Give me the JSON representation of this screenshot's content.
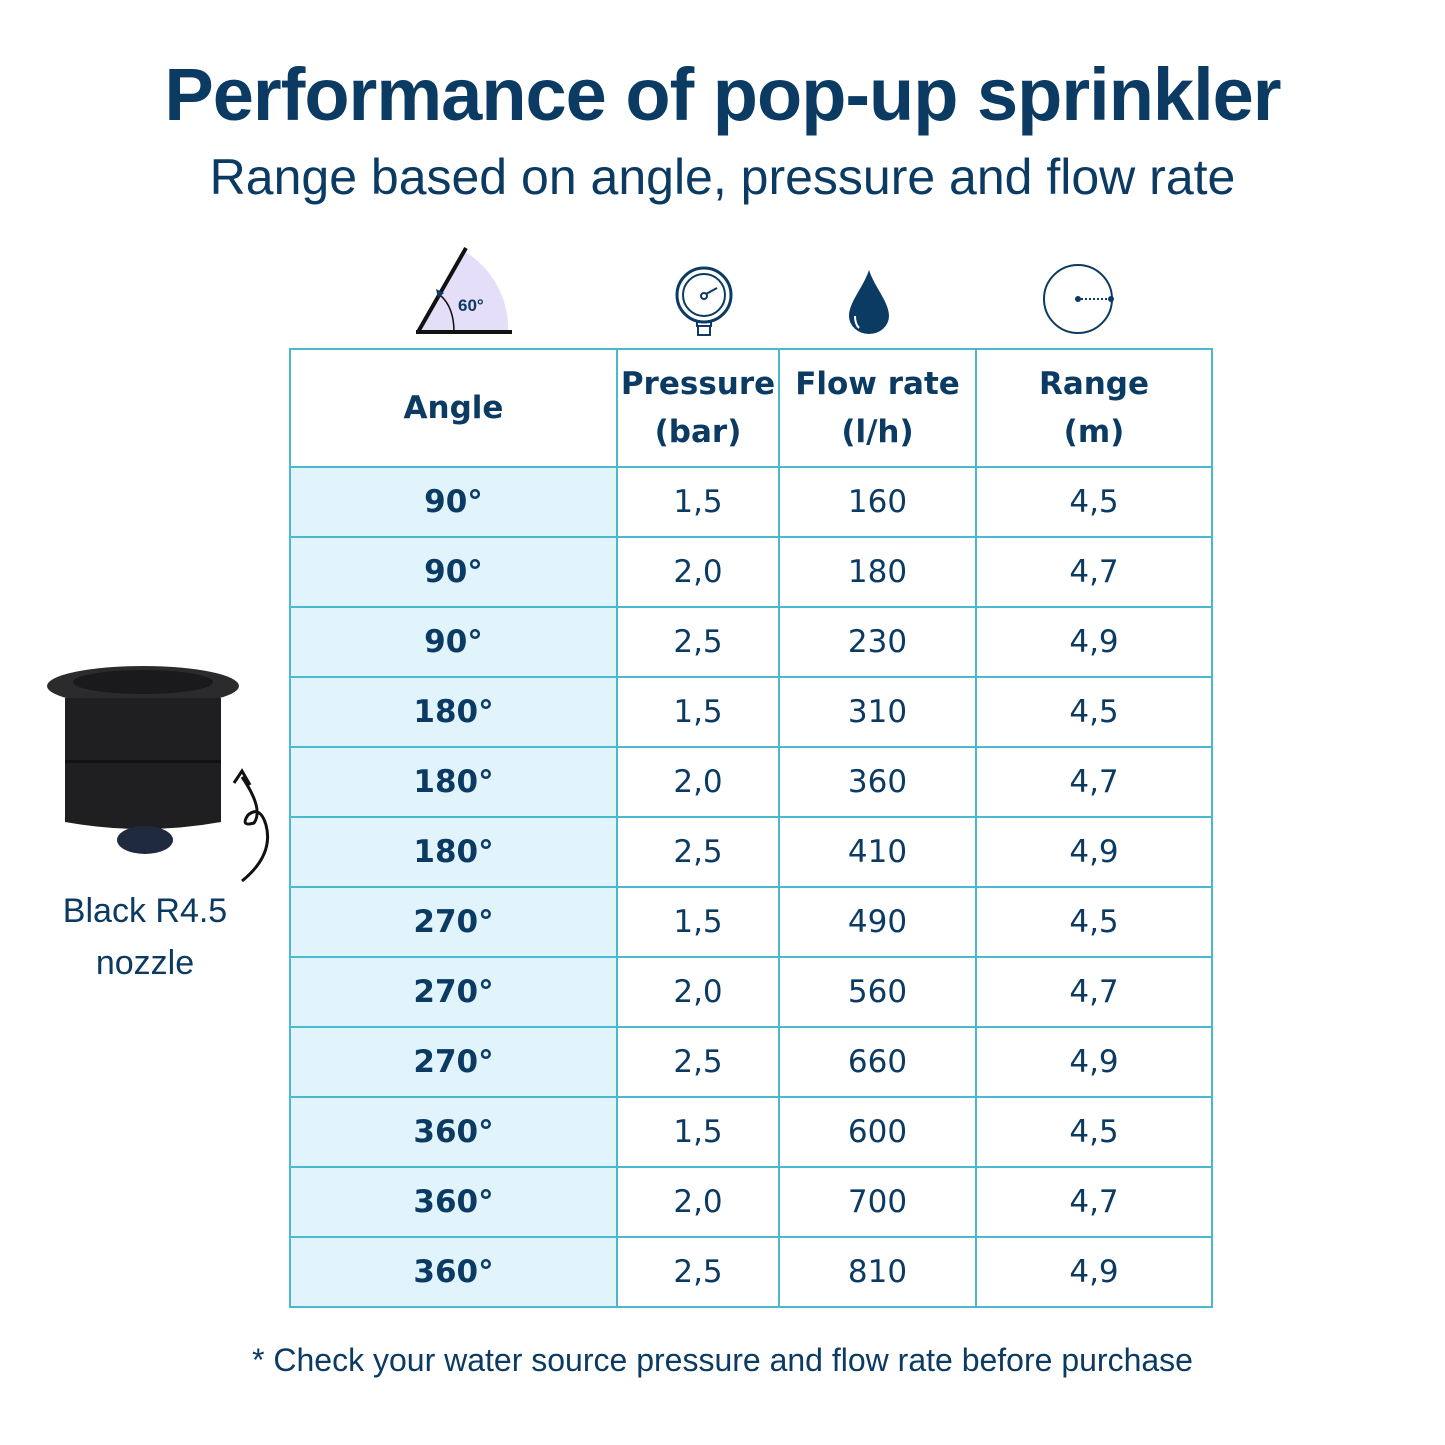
{
  "title": "Performance of pop-up sprinkler",
  "subtitle": "Range based on angle, pressure and flow rate",
  "icons": {
    "angle": {
      "name": "angle-icon",
      "label": "60°"
    },
    "pressure": "pressure-gauge-icon",
    "flow": "water-drop-icon",
    "range": "circle-radius-icon"
  },
  "colors": {
    "text": "#0b3a62",
    "border": "#4cb8cf",
    "angle_column_bg": "#e1f4fb"
  },
  "table": {
    "headers": [
      {
        "line1": "Angle",
        "line2": ""
      },
      {
        "line1": "Pressure",
        "line2": "(bar)"
      },
      {
        "line1": "Flow rate",
        "line2": "(l/h)"
      },
      {
        "line1": "Range",
        "line2": "(m)"
      }
    ],
    "rows": [
      [
        "90°",
        "1,5",
        "160",
        "4,5"
      ],
      [
        "90°",
        "2,0",
        "180",
        "4,7"
      ],
      [
        "90°",
        "2,5",
        "230",
        "4,9"
      ],
      [
        "180°",
        "1,5",
        "310",
        "4,5"
      ],
      [
        "180°",
        "2,0",
        "360",
        "4,7"
      ],
      [
        "180°",
        "2,5",
        "410",
        "4,9"
      ],
      [
        "270°",
        "1,5",
        "490",
        "4,5"
      ],
      [
        "270°",
        "2,0",
        "560",
        "4,7"
      ],
      [
        "270°",
        "2,5",
        "660",
        "4,9"
      ],
      [
        "360°",
        "1,5",
        "600",
        "4,5"
      ],
      [
        "360°",
        "2,0",
        "700",
        "4,7"
      ],
      [
        "360°",
        "2,5",
        "810",
        "4,9"
      ]
    ]
  },
  "nozzle": {
    "line1": "Black R4.5",
    "line2": "nozzle"
  },
  "footnote": "* Check your water source pressure and flow rate before purchase"
}
